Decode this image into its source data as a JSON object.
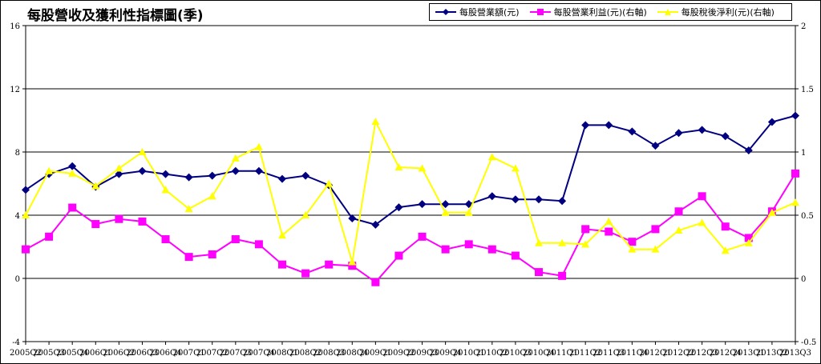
{
  "chart_data": {
    "type": "line",
    "title": "每股營收及獲利性指標圖(季)",
    "categories": [
      "2005Q2",
      "2005Q3",
      "2005Q4",
      "2006Q1",
      "2006Q2",
      "2006Q3",
      "2006Q4",
      "2007Q1",
      "2007Q2",
      "2007Q3",
      "2007Q4",
      "2008Q1",
      "2008Q2",
      "2008Q3",
      "2008Q4",
      "2009Q1",
      "2009Q2",
      "2009Q3",
      "2009Q4",
      "2010Q1",
      "2010Q2",
      "2010Q3",
      "2010Q4",
      "2011Q1",
      "2011Q2",
      "2011Q3",
      "2011Q4",
      "2012Q1",
      "2012Q2",
      "2012Q3",
      "2012Q4",
      "2013Q1",
      "2013Q2",
      "2013Q3"
    ],
    "y_left": {
      "min": -4,
      "max": 16,
      "ticks": [
        "-4",
        "0",
        "4",
        "8",
        "12",
        "16"
      ]
    },
    "y_right": {
      "min": -0.5,
      "max": 2,
      "ticks": [
        "-0.5",
        "0",
        "0.5",
        "1",
        "1.5",
        "2"
      ]
    },
    "grid": "horizontal",
    "legend_position": "top-right",
    "series": [
      {
        "name": "每股營業額(元)",
        "axis": "left",
        "color": "#000080",
        "marker": "diamond",
        "values": [
          5.6,
          6.6,
          7.1,
          5.8,
          6.6,
          6.8,
          6.6,
          6.4,
          6.5,
          6.8,
          6.8,
          6.3,
          6.5,
          5.9,
          3.8,
          3.4,
          4.5,
          4.7,
          4.7,
          4.7,
          5.2,
          5.0,
          5.0,
          4.9,
          9.7,
          9.7,
          9.3,
          8.4,
          9.2,
          9.4,
          9.0,
          8.1,
          9.9,
          10.3
        ]
      },
      {
        "name": "每股營業利益(元)(右軸)",
        "axis": "right",
        "color": "#FF00FF",
        "marker": "square",
        "values": [
          0.23,
          0.33,
          0.56,
          0.43,
          0.47,
          0.45,
          0.31,
          0.17,
          0.19,
          0.31,
          0.27,
          0.11,
          0.04,
          0.11,
          0.1,
          -0.03,
          0.18,
          0.33,
          0.23,
          0.27,
          0.23,
          0.18,
          0.05,
          0.02,
          0.39,
          0.37,
          0.29,
          0.39,
          0.53,
          0.65,
          0.41,
          0.32,
          0.53,
          0.83
        ]
      },
      {
        "name": "每股稅後淨利(元)(右軸)",
        "axis": "right",
        "color": "#FFFF00",
        "marker": "triangle",
        "values": [
          0.5,
          0.85,
          0.83,
          0.73,
          0.87,
          1.0,
          0.7,
          0.55,
          0.65,
          0.95,
          1.04,
          0.34,
          0.5,
          0.75,
          0.13,
          1.24,
          0.88,
          0.87,
          0.52,
          0.52,
          0.96,
          0.87,
          0.28,
          0.28,
          0.27,
          0.45,
          0.23,
          0.23,
          0.38,
          0.44,
          0.22,
          0.28,
          0.52,
          0.6
        ]
      }
    ]
  },
  "legend": {
    "items": [
      {
        "label": "每股營業額(元)",
        "color": "#000080",
        "marker": "diamond"
      },
      {
        "label": "每股營業利益(元)(右軸)",
        "color": "#FF00FF",
        "marker": "square"
      },
      {
        "label": "每股稅後淨利(元)(右軸)",
        "color": "#FFFF00",
        "marker": "triangle"
      }
    ]
  }
}
